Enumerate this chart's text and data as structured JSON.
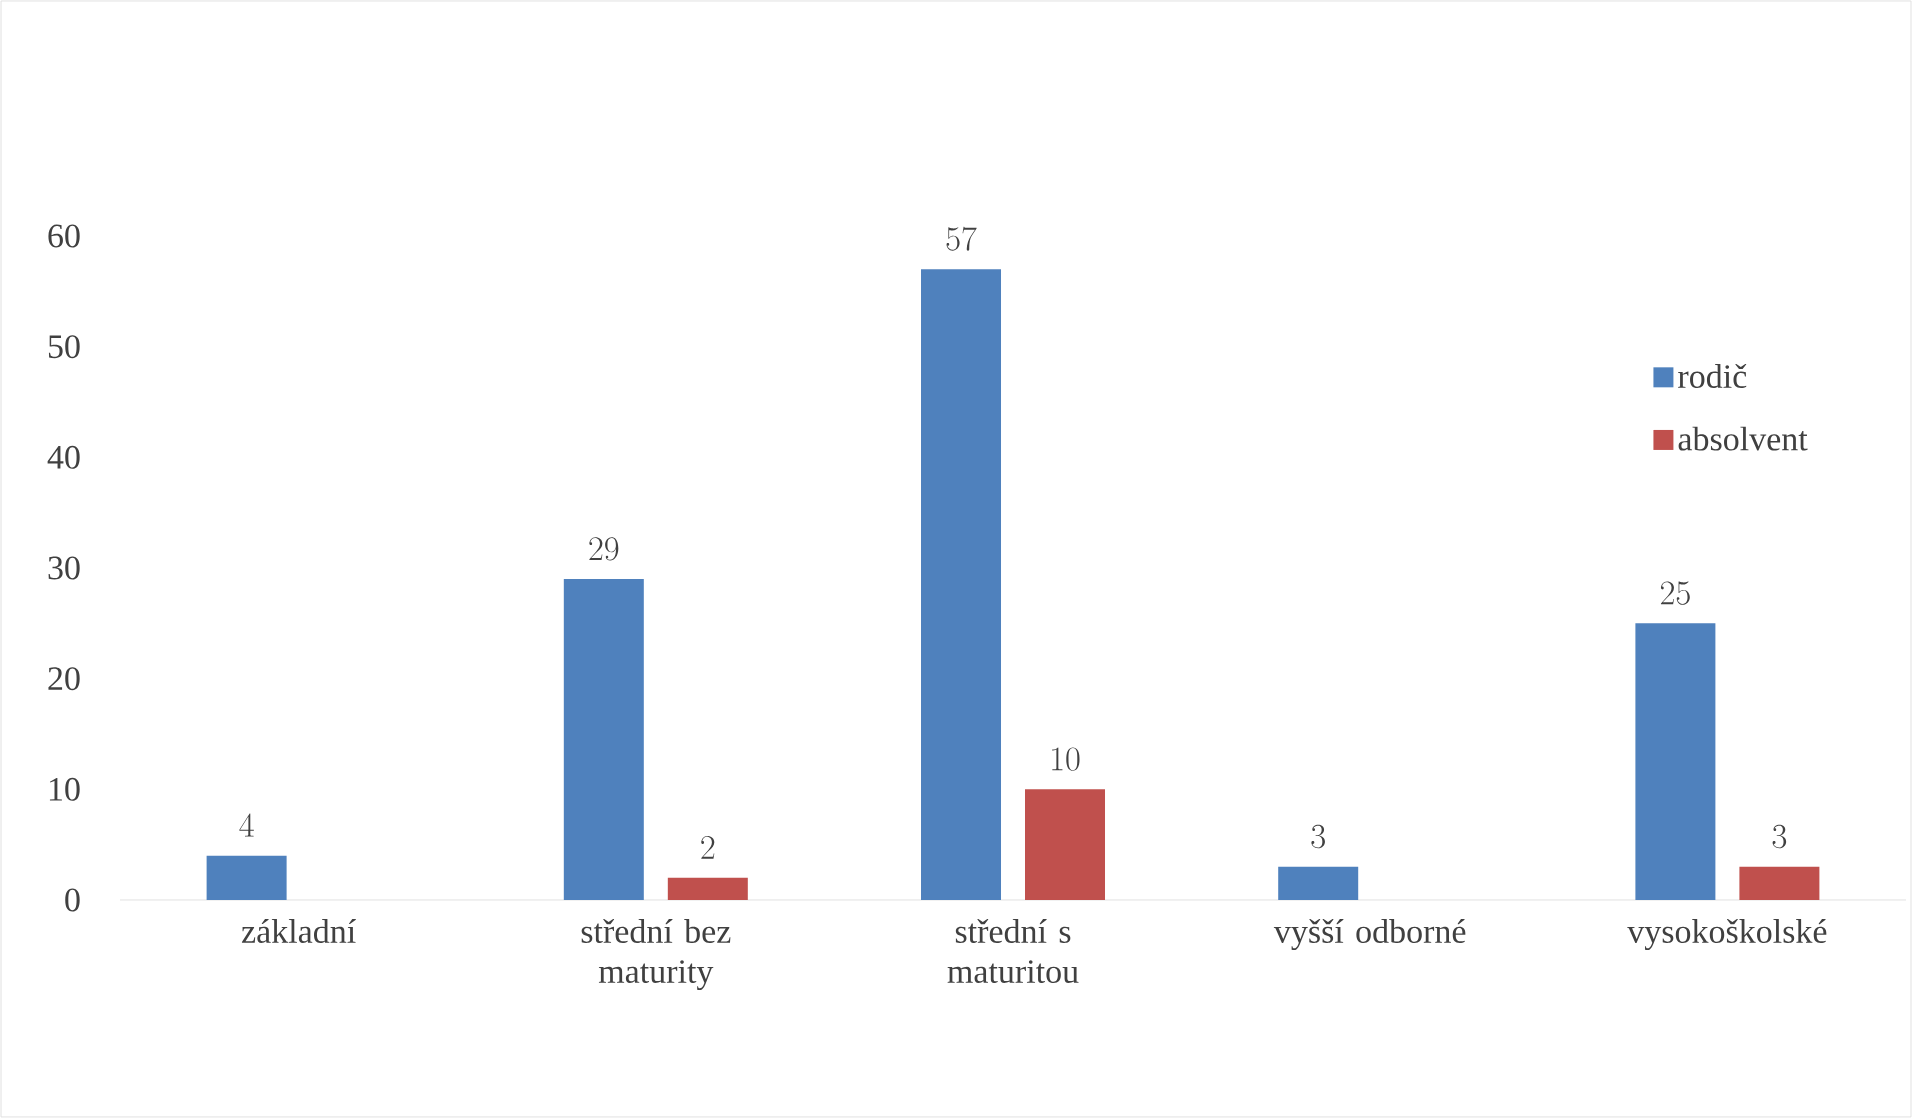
{
  "chart_data": {
    "type": "bar",
    "categories": [
      "základní",
      "střední bez maturity",
      "střední s maturitou",
      "vyšší odborné",
      "vysokoškolské"
    ],
    "series": [
      {
        "name": "rodič",
        "color": "#4f81bd",
        "values": [
          4,
          29,
          57,
          3,
          25
        ]
      },
      {
        "name": "absolvent",
        "color": "#c0504d",
        "values": [
          null,
          2,
          10,
          null,
          3
        ]
      }
    ],
    "ylim": [
      0,
      60
    ],
    "yticks": [
      0,
      10,
      20,
      30,
      40,
      50,
      60
    ],
    "data_labels": true,
    "legend": "right",
    "grid": false
  }
}
